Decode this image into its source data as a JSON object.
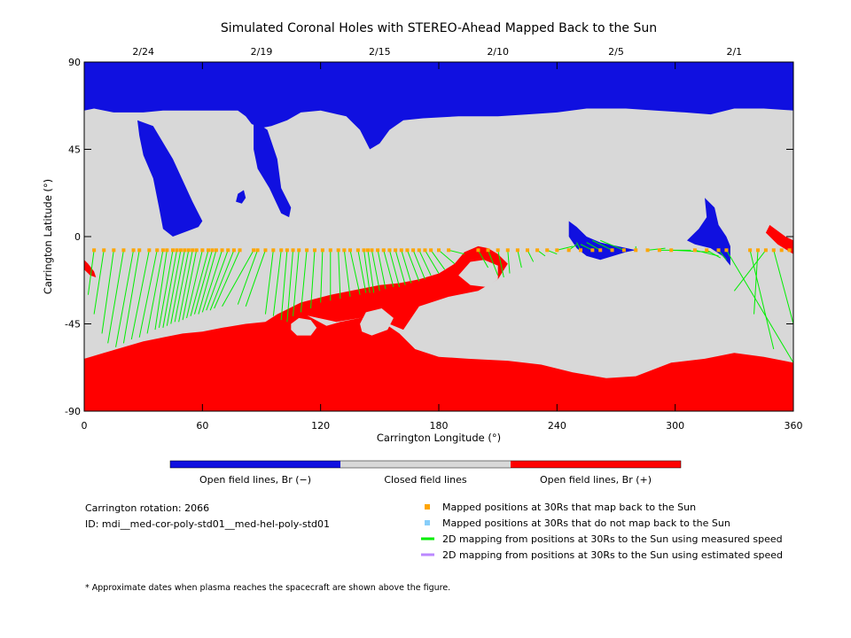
{
  "chart_data": {
    "type": "map",
    "title": "Simulated Coronal Holes with STEREO-Ahead Mapped Back to the Sun",
    "xlabel": "Carrington Longitude (°)",
    "ylabel": "Carrington Latitude (°)",
    "xlim": [
      0,
      360
    ],
    "ylim": [
      -90,
      90
    ],
    "x_ticks": [
      "0",
      "60",
      "120",
      "180",
      "240",
      "300",
      "360"
    ],
    "y_ticks": [
      "90",
      "45",
      "0",
      "-45",
      "-90"
    ],
    "top_dates": [
      {
        "lon": 30,
        "label": "2/24"
      },
      {
        "lon": 90,
        "label": "2/19"
      },
      {
        "lon": 150,
        "label": "2/15"
      },
      {
        "lon": 210,
        "label": "2/10"
      },
      {
        "lon": 270,
        "label": "2/5"
      },
      {
        "lon": 330,
        "label": "2/1"
      }
    ],
    "colorbar": [
      {
        "label": "Open field lines, Br (−)",
        "color": "#1010e0"
      },
      {
        "label": "Closed field lines",
        "color": "#d8d8d8"
      },
      {
        "label": "Open field lines, Br (+)",
        "color": "#ff0000"
      }
    ],
    "regions": {
      "north_open": [
        [
          0,
          90
        ],
        [
          360,
          90
        ],
        [
          360,
          65
        ],
        [
          345,
          66
        ],
        [
          330,
          66
        ],
        [
          318,
          63
        ],
        [
          305,
          64
        ],
        [
          290,
          65
        ],
        [
          275,
          66
        ],
        [
          255,
          66
        ],
        [
          240,
          64
        ],
        [
          225,
          63
        ],
        [
          210,
          62
        ],
        [
          190,
          62
        ],
        [
          172,
          61
        ],
        [
          162,
          60
        ],
        [
          155,
          55
        ],
        [
          150,
          48
        ],
        [
          145,
          45
        ],
        [
          140,
          55
        ],
        [
          133,
          62
        ],
        [
          120,
          65
        ],
        [
          110,
          64
        ],
        [
          103,
          60
        ],
        [
          95,
          57
        ],
        [
          90,
          56
        ],
        [
          85,
          58
        ],
        [
          82,
          62
        ],
        [
          78,
          65
        ],
        [
          65,
          65
        ],
        [
          40,
          65
        ],
        [
          30,
          64
        ],
        [
          15,
          64
        ],
        [
          5,
          66
        ],
        [
          0,
          65
        ]
      ],
      "north_tongue_a": [
        [
          27,
          60
        ],
        [
          35,
          57
        ],
        [
          45,
          40
        ],
        [
          55,
          18
        ],
        [
          60,
          8
        ],
        [
          58,
          5
        ],
        [
          45,
          0
        ],
        [
          40,
          4
        ],
        [
          38,
          15
        ],
        [
          35,
          30
        ],
        [
          30,
          42
        ],
        [
          28,
          52
        ]
      ],
      "north_tongue_b": [
        [
          86,
          60
        ],
        [
          93,
          55
        ],
        [
          98,
          40
        ],
        [
          100,
          25
        ],
        [
          105,
          15
        ],
        [
          104,
          10
        ],
        [
          100,
          12
        ],
        [
          94,
          25
        ],
        [
          88,
          35
        ],
        [
          86,
          45
        ]
      ],
      "north_blob": [
        [
          78,
          22
        ],
        [
          81,
          24
        ],
        [
          82,
          20
        ],
        [
          80,
          17
        ],
        [
          77,
          18
        ]
      ],
      "mid_hole_1": [
        [
          246,
          8
        ],
        [
          250,
          5
        ],
        [
          255,
          0
        ],
        [
          262,
          -3
        ],
        [
          280,
          -7
        ],
        [
          275,
          -8
        ],
        [
          262,
          -12
        ],
        [
          255,
          -10
        ],
        [
          250,
          -6
        ],
        [
          246,
          0
        ]
      ],
      "mid_hole_2": [
        [
          315,
          20
        ],
        [
          320,
          15
        ],
        [
          322,
          6
        ],
        [
          326,
          0
        ],
        [
          328,
          -5
        ],
        [
          328,
          -15
        ],
        [
          324,
          -10
        ],
        [
          318,
          -6
        ],
        [
          310,
          -4
        ],
        [
          306,
          -2
        ],
        [
          312,
          4
        ],
        [
          316,
          10
        ]
      ],
      "south_open": [
        [
          0,
          -90
        ],
        [
          360,
          -90
        ],
        [
          360,
          -65
        ],
        [
          345,
          -62
        ],
        [
          330,
          -60
        ],
        [
          315,
          -63
        ],
        [
          298,
          -65
        ],
        [
          280,
          -72
        ],
        [
          265,
          -73
        ],
        [
          248,
          -70
        ],
        [
          232,
          -66
        ],
        [
          215,
          -64
        ],
        [
          195,
          -63
        ],
        [
          180,
          -62
        ],
        [
          168,
          -58
        ],
        [
          160,
          -50
        ],
        [
          150,
          -43
        ],
        [
          140,
          -42
        ],
        [
          130,
          -44
        ],
        [
          123,
          -46
        ],
        [
          112,
          -40
        ],
        [
          104,
          -38
        ],
        [
          98,
          -40
        ],
        [
          92,
          -44
        ],
        [
          82,
          -45
        ],
        [
          70,
          -47
        ],
        [
          60,
          -49
        ],
        [
          50,
          -50
        ],
        [
          40,
          -52
        ],
        [
          30,
          -54
        ],
        [
          20,
          -57
        ],
        [
          10,
          -60
        ],
        [
          0,
          -63
        ]
      ],
      "south_ridge": [
        [
          98,
          -40
        ],
        [
          110,
          -34
        ],
        [
          125,
          -30
        ],
        [
          140,
          -27
        ],
        [
          150,
          -25
        ],
        [
          160,
          -24
        ],
        [
          170,
          -22
        ],
        [
          180,
          -19
        ],
        [
          188,
          -14
        ],
        [
          193,
          -8
        ],
        [
          200,
          -5
        ],
        [
          205,
          -6
        ],
        [
          210,
          -9
        ],
        [
          215,
          -14
        ],
        [
          210,
          -22
        ],
        [
          200,
          -28
        ],
        [
          185,
          -31
        ],
        [
          170,
          -36
        ],
        [
          162,
          -48
        ],
        [
          150,
          -43
        ],
        [
          140,
          -42
        ],
        [
          128,
          -44
        ],
        [
          110,
          -40
        ]
      ],
      "south_hole_1": [
        [
          190,
          -20
        ],
        [
          196,
          -13
        ],
        [
          203,
          -12
        ],
        [
          210,
          -15
        ],
        [
          210,
          -22
        ],
        [
          204,
          -26
        ],
        [
          196,
          -25
        ]
      ],
      "south_island_1": [
        [
          105,
          -45
        ],
        [
          109,
          -42
        ],
        [
          115,
          -43
        ],
        [
          118,
          -47
        ],
        [
          115,
          -51
        ],
        [
          108,
          -51
        ],
        [
          105,
          -48
        ]
      ],
      "south_island_2": [
        [
          140,
          -45
        ],
        [
          143,
          -39
        ],
        [
          151,
          -37
        ],
        [
          157,
          -42
        ],
        [
          154,
          -48
        ],
        [
          146,
          -51
        ],
        [
          141,
          -49
        ]
      ],
      "plus_spot_nw": [
        [
          0,
          -12
        ],
        [
          2,
          -14
        ],
        [
          5,
          -18
        ],
        [
          6,
          -21
        ],
        [
          3,
          -20
        ],
        [
          0,
          -17
        ]
      ],
      "plus_spot_ne": [
        [
          348,
          6
        ],
        [
          356,
          0
        ],
        [
          360,
          -2
        ],
        [
          360,
          -9
        ],
        [
          352,
          -4
        ],
        [
          346,
          2
        ]
      ]
    },
    "points_mapped": [
      5,
      10,
      15,
      20,
      25,
      28,
      33,
      37,
      40,
      42,
      45,
      47,
      49,
      51,
      53,
      55,
      57,
      60,
      63,
      65,
      67,
      70,
      73,
      76,
      79,
      86,
      88,
      92,
      96,
      100,
      103,
      106,
      109,
      113,
      117,
      121,
      125,
      129,
      132,
      135,
      139,
      142,
      144,
      146,
      149,
      152,
      155,
      158,
      161,
      164,
      167,
      170,
      173,
      176,
      180,
      185,
      200,
      205,
      210,
      215,
      220,
      225,
      230,
      235,
      240,
      246,
      252,
      258,
      262,
      268,
      274,
      280,
      286,
      292,
      298,
      310,
      316,
      322,
      326,
      338,
      342,
      346,
      350,
      354,
      358
    ],
    "points_mapped_lat": -7,
    "mapping_lines": [
      [
        2,
        -30
      ],
      [
        5,
        -40
      ],
      [
        9,
        -50
      ],
      [
        12,
        -55
      ],
      [
        16,
        -57
      ],
      [
        20,
        -55
      ],
      [
        24,
        -53
      ],
      [
        28,
        -52
      ],
      [
        32,
        -50
      ],
      [
        36,
        -48
      ],
      [
        38,
        -47
      ],
      [
        40,
        -47
      ],
      [
        42,
        -46
      ],
      [
        44,
        -45
      ],
      [
        46,
        -44
      ],
      [
        48,
        -44
      ],
      [
        50,
        -43
      ],
      [
        52,
        -42
      ],
      [
        54,
        -41
      ],
      [
        56,
        -40
      ],
      [
        58,
        -40
      ],
      [
        60,
        -39
      ],
      [
        62,
        -38
      ],
      [
        64,
        -38
      ],
      [
        66,
        -37
      ],
      [
        70,
        -36
      ],
      [
        78,
        -35
      ],
      [
        82,
        -36
      ],
      [
        92,
        -40
      ],
      [
        96,
        -41
      ],
      [
        100,
        -43
      ],
      [
        103,
        -44
      ],
      [
        106,
        -41
      ],
      [
        110,
        -39
      ],
      [
        115,
        -37
      ],
      [
        120,
        -34
      ],
      [
        125,
        -33
      ],
      [
        130,
        -32
      ],
      [
        135,
        -31
      ],
      [
        140,
        -30
      ],
      [
        143,
        -29
      ],
      [
        145,
        -29
      ],
      [
        147,
        -29
      ],
      [
        150,
        -28
      ],
      [
        153,
        -27
      ],
      [
        157,
        -26
      ],
      [
        160,
        -26
      ],
      [
        163,
        -25
      ],
      [
        166,
        -24
      ],
      [
        170,
        -23
      ],
      [
        173,
        -22
      ],
      [
        176,
        -20
      ],
      [
        180,
        -19
      ],
      [
        183,
        -17
      ],
      [
        188,
        -14
      ],
      [
        193,
        -9
      ],
      [
        205,
        -16
      ],
      [
        210,
        -20
      ],
      [
        213,
        -21
      ],
      [
        216,
        -19
      ],
      [
        222,
        -16
      ],
      [
        228,
        -13
      ],
      [
        234,
        -10
      ],
      [
        240,
        -9
      ],
      [
        248,
        -5
      ],
      [
        250,
        -4
      ],
      [
        250,
        -3
      ],
      [
        252,
        -4
      ],
      [
        255,
        -3
      ],
      [
        258,
        -2
      ],
      [
        262,
        -2
      ],
      [
        280,
        -5
      ],
      [
        295,
        -6
      ],
      [
        308,
        -7
      ],
      [
        318,
        -8
      ],
      [
        322,
        -10
      ],
      [
        323,
        -11
      ],
      [
        326,
        -12
      ],
      [
        360,
        -65
      ],
      [
        350,
        -58
      ],
      [
        340,
        -40
      ],
      [
        330,
        -28
      ],
      [
        360,
        -45
      ]
    ],
    "line_color": "#00ee00",
    "point_color": "#ffa500",
    "legend": [
      {
        "symbol": "square",
        "color": "#ffa500",
        "label": "Mapped positions at 30Rs that map back to the Sun"
      },
      {
        "symbol": "square",
        "color": "#87cefa",
        "label": "Mapped positions at 30Rs that do not map back to the Sun"
      },
      {
        "symbol": "line",
        "color": "#00ee00",
        "label": "2D mapping from positions at 30Rs to the Sun using measured speed"
      },
      {
        "symbol": "line",
        "color": "#bb88ff",
        "label": "2D mapping from positions at 30Rs to the Sun using estimated speed"
      }
    ],
    "info": {
      "rotation": "Carrington rotation: 2066",
      "id": "ID: mdi__med-cor-poly-std01__med-hel-poly-std01"
    },
    "footnote": "* Approximate dates when plasma reaches the spacecraft are shown above the figure."
  }
}
